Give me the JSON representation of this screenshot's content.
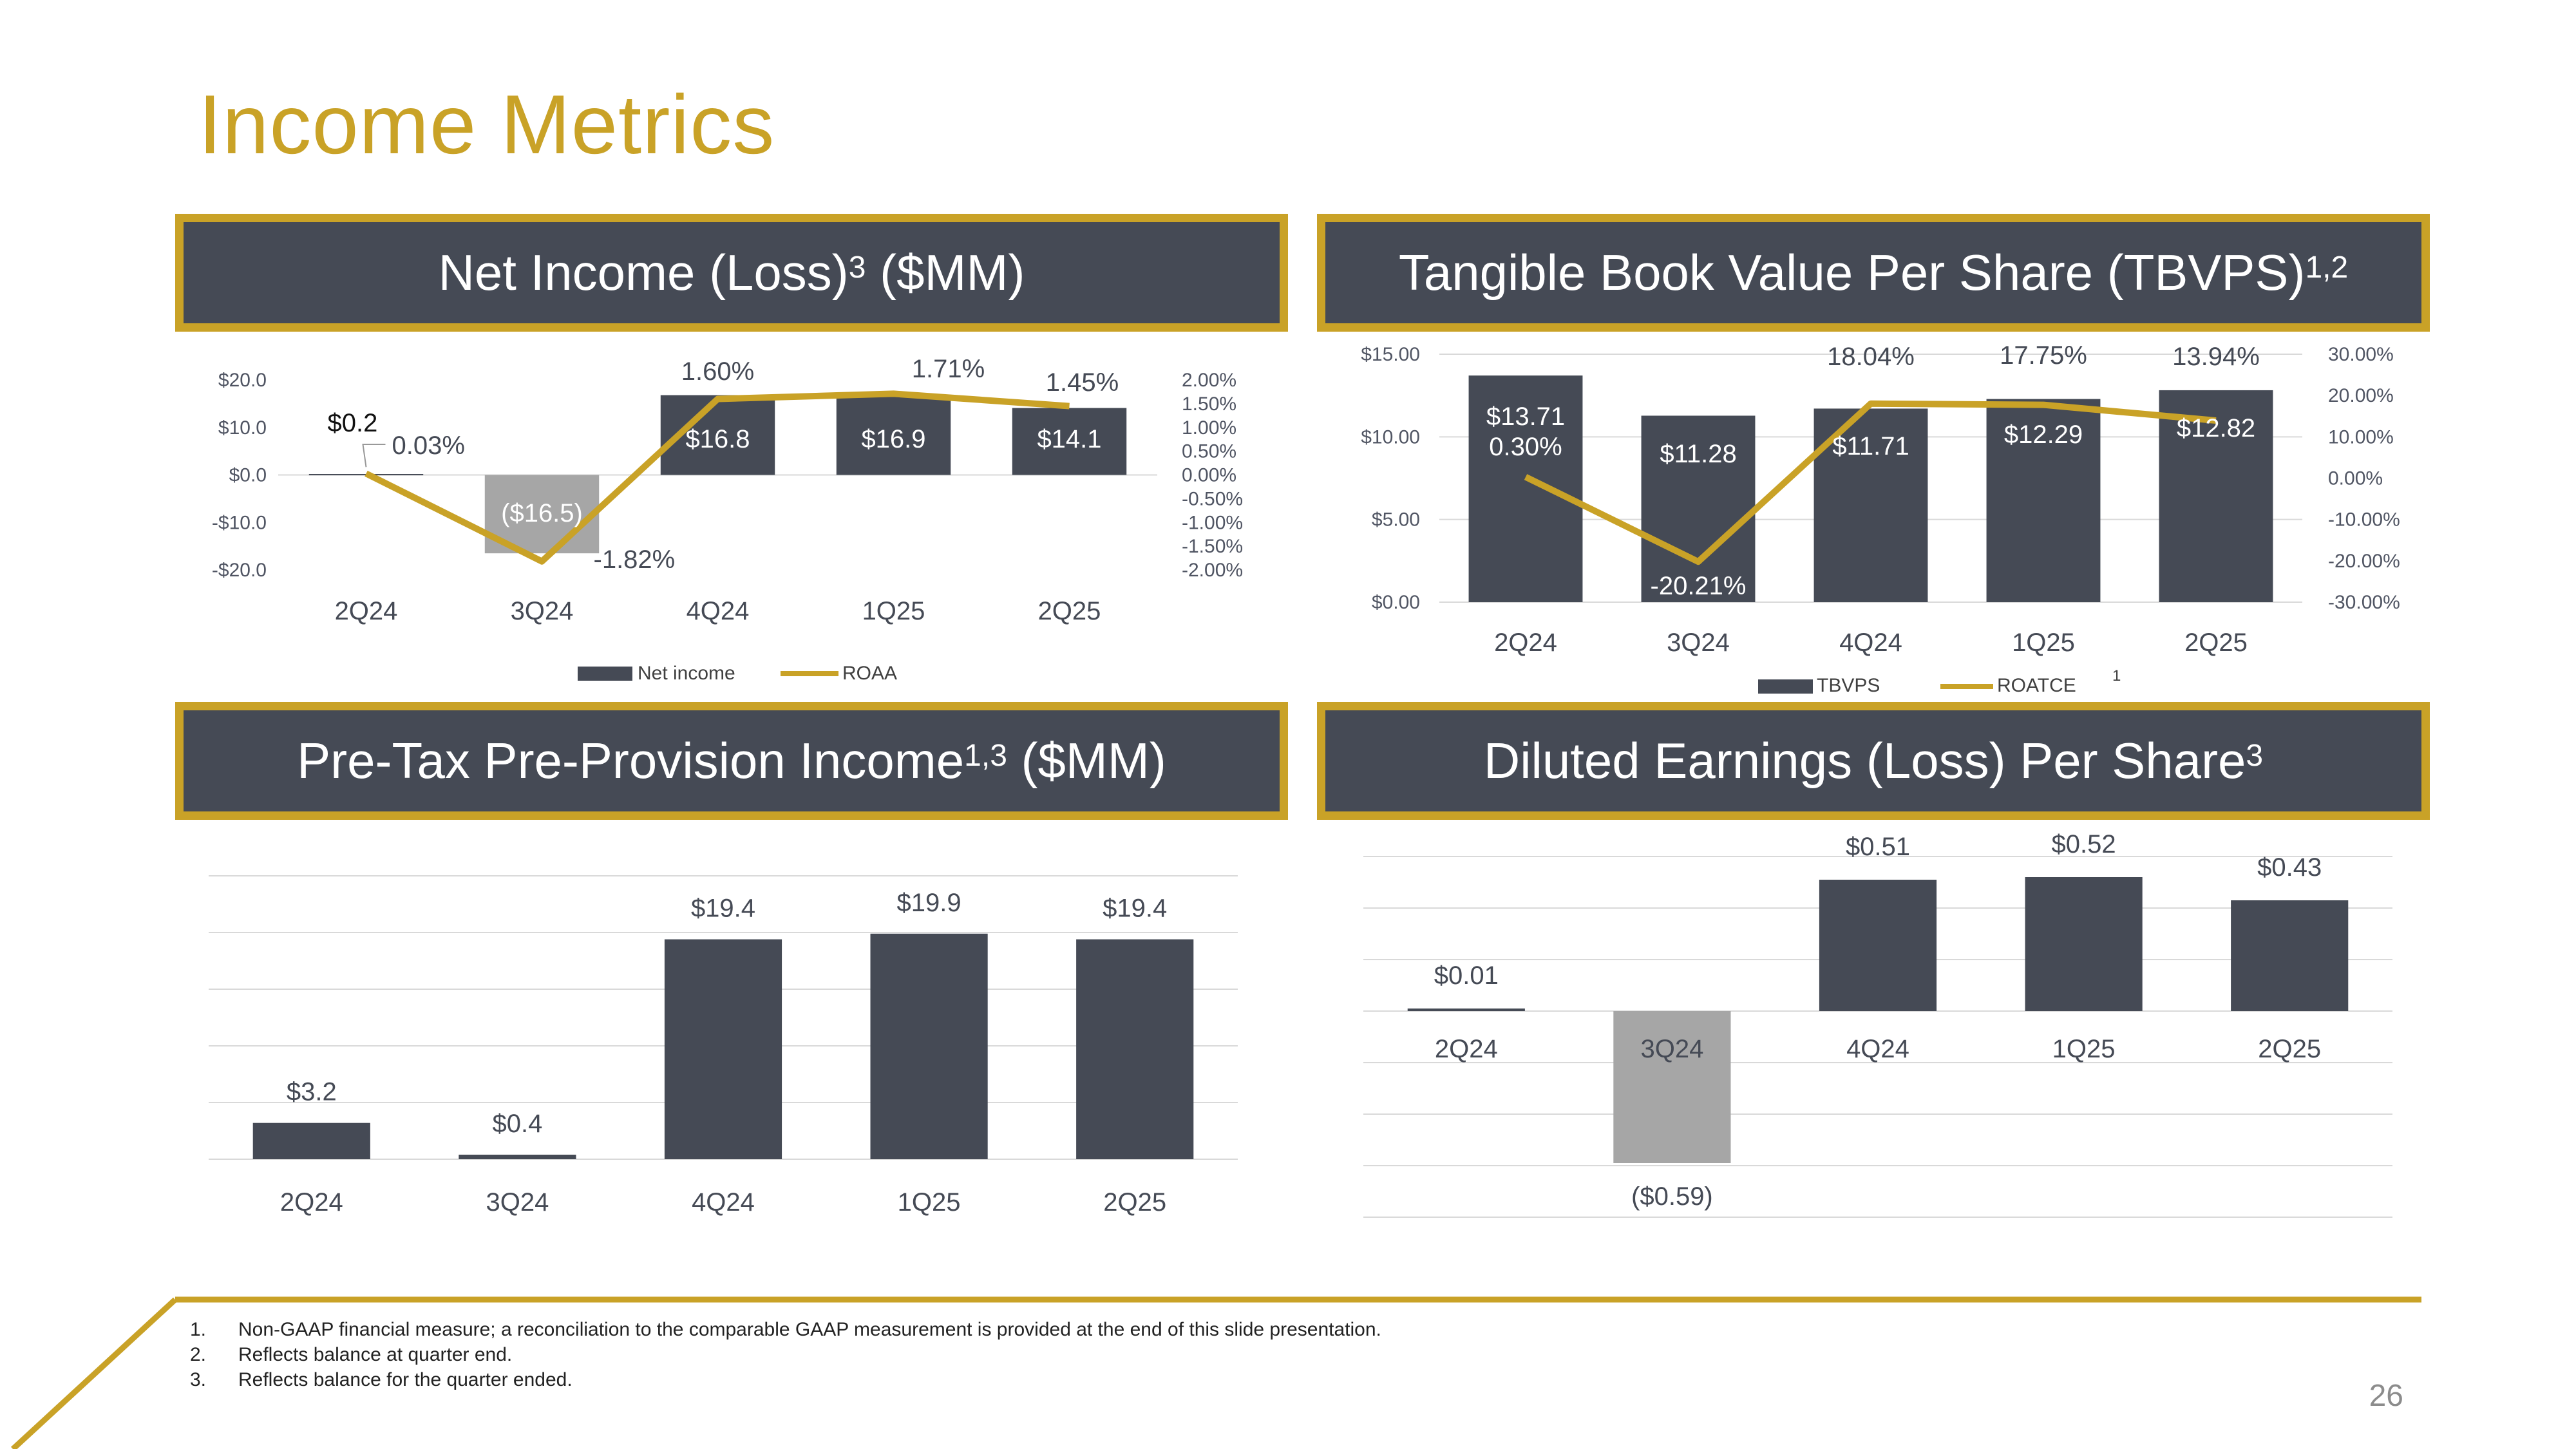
{
  "page": {
    "title": "Income Metrics",
    "page_number": "26"
  },
  "colors": {
    "gold": "#C9A227",
    "bar": "#454A55",
    "negative_bar": "#A6A6A6",
    "banner_bg": "#454A55"
  },
  "panels": {
    "net_income": {
      "title": "Net Income (Loss)",
      "sup": "3",
      "suffix": " ($MM)"
    },
    "tbvps": {
      "title": "Tangible Book Value Per Share (TBVPS)",
      "sup": "1,2",
      "suffix": ""
    },
    "pptp": {
      "title": "Pre-Tax Pre-Provision Income",
      "sup": "1,3",
      "suffix": " ($MM)"
    },
    "eps": {
      "title": "Diluted Earnings (Loss) Per Share",
      "sup": "3",
      "suffix": ""
    }
  },
  "footnotes": [
    {
      "n": "1.",
      "text": "Non-GAAP financial measure; a reconciliation to the comparable GAAP measurement is provided at the end of this slide presentation."
    },
    {
      "n": "2.",
      "text": "Reflects balance at quarter end."
    },
    {
      "n": "3.",
      "text": "Reflects balance for the quarter ended."
    }
  ],
  "chart_data": [
    {
      "id": "net_income",
      "type": "bar+line",
      "categories": [
        "2Q24",
        "3Q24",
        "4Q24",
        "1Q25",
        "2Q25"
      ],
      "series": [
        {
          "name": "Net income",
          "axis": "left",
          "values": [
            0.2,
            -16.5,
            16.8,
            16.9,
            14.1
          ],
          "labels": [
            "$0.2",
            "($16.5)",
            "$16.8",
            "$16.9",
            "$14.1"
          ]
        },
        {
          "name": "ROAA",
          "axis": "right",
          "values": [
            0.03,
            -1.82,
            1.6,
            1.71,
            1.45
          ],
          "labels": [
            "0.03%",
            "-1.82%",
            "1.60%",
            "1.71%",
            "1.45%"
          ]
        }
      ],
      "ylim": [
        -20,
        20
      ],
      "yticks": [
        "$20.0",
        "$10.0",
        "$0.0",
        "-$10.0",
        "-$20.0"
      ],
      "y2lim": [
        -2,
        2
      ],
      "y2ticks": [
        "2.00%",
        "1.50%",
        "1.00%",
        "0.50%",
        "0.00%",
        "-0.50%",
        "-1.00%",
        "-1.50%",
        "-2.00%"
      ],
      "legend": [
        "Net income",
        "ROAA"
      ]
    },
    {
      "id": "tbvps",
      "type": "bar+line",
      "categories": [
        "2Q24",
        "3Q24",
        "4Q24",
        "1Q25",
        "2Q25"
      ],
      "series": [
        {
          "name": "TBVPS",
          "axis": "left",
          "values": [
            13.71,
            11.28,
            11.71,
            12.29,
            12.82
          ],
          "labels": [
            "$13.71",
            "$11.28",
            "$11.71",
            "$12.29",
            "$12.82"
          ]
        },
        {
          "name": "ROATCE",
          "axis": "right",
          "values": [
            0.3,
            -20.21,
            18.04,
            17.75,
            13.94
          ],
          "labels": [
            "0.30%",
            "-20.21%",
            "18.04%",
            "17.75%",
            "13.94%"
          ]
        }
      ],
      "ylim": [
        0,
        15
      ],
      "yticks": [
        "$15.00",
        "$10.00",
        "$5.00",
        "$0.00"
      ],
      "y2lim": [
        -30,
        30
      ],
      "y2ticks": [
        "30.00%",
        "20.00%",
        "10.00%",
        "0.00%",
        "-10.00%",
        "-20.00%",
        "-30.00%"
      ],
      "legend": [
        "TBVPS",
        "ROATCE"
      ],
      "legend_sup": "1"
    },
    {
      "id": "pptp",
      "type": "bar",
      "categories": [
        "2Q24",
        "3Q24",
        "4Q24",
        "1Q25",
        "2Q25"
      ],
      "values": [
        3.2,
        0.4,
        19.4,
        19.9,
        19.4
      ],
      "labels": [
        "$3.2",
        "$0.4",
        "$19.4",
        "$19.9",
        "$19.4"
      ],
      "ylim": [
        0,
        25
      ]
    },
    {
      "id": "eps",
      "type": "bar",
      "categories": [
        "2Q24",
        "3Q24",
        "4Q24",
        "1Q25",
        "2Q25"
      ],
      "values": [
        0.01,
        -0.59,
        0.51,
        0.52,
        0.43
      ],
      "labels": [
        "$0.01",
        "($0.59)",
        "$0.51",
        "$0.52",
        "$0.43"
      ],
      "ylim": [
        -0.8,
        0.6
      ]
    }
  ]
}
